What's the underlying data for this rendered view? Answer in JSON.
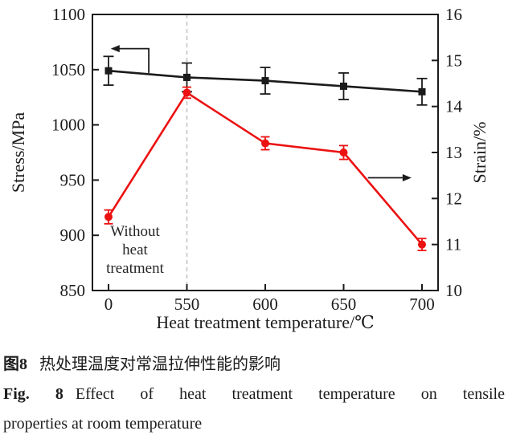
{
  "chart_data": {
    "type": "line",
    "x_label": "Heat treatment temperature/℃",
    "x_categories": [
      "0",
      "550",
      "600",
      "650",
      "700"
    ],
    "left_axis": {
      "label": "Stress/MPa",
      "min": 850,
      "max": 1100,
      "ticks": [
        1100,
        1050,
        1000,
        950,
        900,
        850
      ]
    },
    "right_axis": {
      "label": "Strain/%",
      "min": 10,
      "max": 16,
      "ticks": [
        16,
        15,
        14,
        13,
        12,
        11,
        10
      ]
    },
    "grid": false,
    "legend": "none",
    "colors": {
      "axis": "#1b1b1b",
      "text": "#1b1b1b",
      "dashed": "#bdbdbd"
    },
    "series": [
      {
        "name": "stress",
        "axis": "left",
        "marker": "square",
        "color": "#1b1b1b",
        "values": [
          1049,
          1043,
          1040,
          1035,
          1030
        ],
        "errors": [
          13,
          13,
          12,
          12,
          12
        ]
      },
      {
        "name": "strain",
        "axis": "right",
        "marker": "circle",
        "color": "#ec1212",
        "values": [
          11.6,
          14.3,
          13.2,
          13.0,
          11.0
        ],
        "errors": [
          0.15,
          0.12,
          0.14,
          0.15,
          0.13
        ]
      }
    ],
    "dashed_line_at_category": "550",
    "annotations": {
      "no_heat_label": {
        "lines": [
          "Without",
          "heat",
          "treatment"
        ]
      },
      "stress_arrow": {
        "tip_x_frac": 0.053,
        "corner_x_frac": 0.163,
        "level": 1069,
        "drop_to": 1047
      },
      "strain_arrow": {
        "from_x_frac": 0.797,
        "to_x_frac": 0.923,
        "level": 12.45
      }
    }
  },
  "caption": {
    "zh_label": "图8",
    "zh_text": "热处理温度对常温拉伸性能的影响",
    "en_label": "Fig. 8",
    "en_text": "Effect of heat treatment temperature on tensile",
    "en_text2": "properties at room temperature"
  }
}
